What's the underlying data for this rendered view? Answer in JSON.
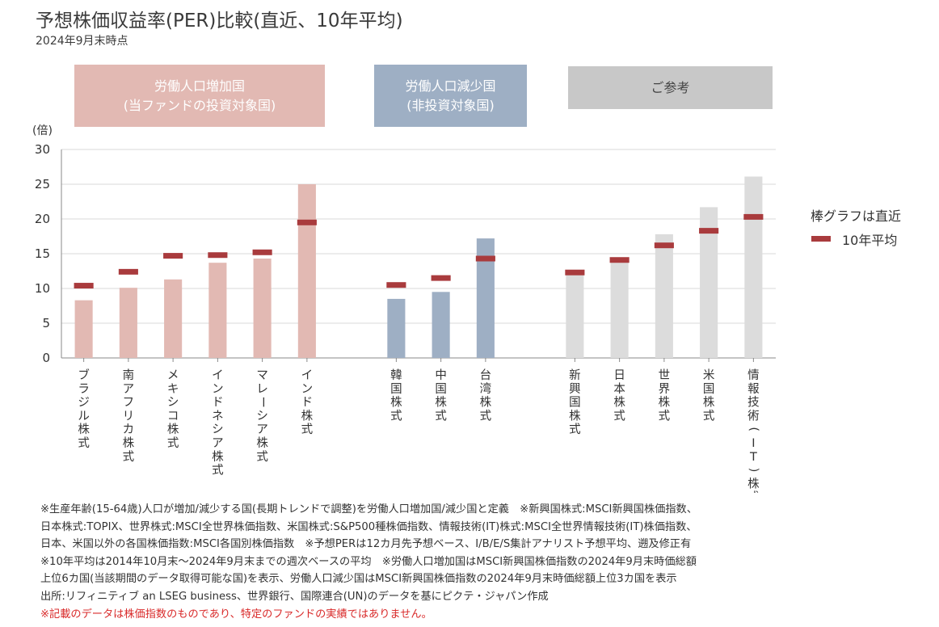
{
  "title": "予想株価収益率(PER)比較(直近、10年平均)",
  "subtitle": "2024年9月末時点",
  "groups": [
    {
      "label_line1": "労働人口増加国",
      "label_line2": "(当ファンドの投資対象国)",
      "color": "#e2b9b3"
    },
    {
      "label_line1": "労働人口減少国",
      "label_line2": "(非投資対象国)",
      "color": "#9eafc4"
    },
    {
      "label_line1": "ご参考",
      "label_line2": "",
      "color": "#c8c8c8",
      "text_color": "#555555"
    }
  ],
  "legend": {
    "bar_label": "棒グラフは直近",
    "marker_label": "10年平均",
    "marker_color": "#a93b3d"
  },
  "chart_data": {
    "type": "bar",
    "ylabel": "(倍)",
    "ylim": [
      0,
      30
    ],
    "yticks": [
      0,
      5,
      10,
      15,
      20,
      25,
      30
    ],
    "grid": true,
    "categories": [
      "ブラジル株式",
      "南アフリカ株式",
      "メキシコ株式",
      "インドネシア株式",
      "マレーシア株式",
      "インド株式",
      "韓国株式",
      "中国株式",
      "台湾株式",
      "新興国株式",
      "日本株式",
      "世界株式",
      "米国株式",
      "情報技術(IT)株式"
    ],
    "category_group": [
      0,
      0,
      0,
      0,
      0,
      0,
      1,
      1,
      1,
      2,
      2,
      2,
      2,
      2
    ],
    "series": [
      {
        "name": "棒グラフは直近",
        "values": [
          8.3,
          10.1,
          11.3,
          13.7,
          14.3,
          25.0,
          8.5,
          9.5,
          17.2,
          12.2,
          13.8,
          17.8,
          21.7,
          26.1
        ]
      },
      {
        "name": "10年平均",
        "values": [
          10.4,
          12.4,
          14.7,
          14.8,
          15.2,
          19.5,
          10.5,
          11.5,
          14.3,
          12.3,
          14.1,
          16.2,
          18.3,
          20.3
        ]
      }
    ],
    "bar_colors": {
      "0": "#e2b9b3",
      "1": "#9eafc4",
      "2": "#dcdcdc"
    }
  },
  "notes": [
    "※生産年齢(15-64歳)人口が増加/減少する国(長期トレンドで調整)を労働人口増加国/減少国と定義　※新興国株式:MSCI新興国株価指数、",
    "日本株式:TOPIX、世界株式:MSCI全世界株価指数、米国株式:S&P500種株価指数、情報技術(IT)株式:MSCI全世界情報技術(IT)株価指数、",
    "日本、米国以外の各国株価指数:MSCI各国別株価指数　※予想PERは12カ月先予想ベース、I/B/E/S集計アナリスト予想平均、遡及修正有",
    "※10年平均は2014年10月末～2024年9月末までの週次ベースの平均　※労働人口増加国はMSCI新興国株価指数の2024年9月末時価総額",
    "上位6カ国(当該期間のデータ取得可能な国)を表示、労働人口減少国はMSCI新興国株価指数の2024年9月末時価総額上位3カ国を表示",
    "出所:リフィニティブ an LSEG business、世界銀行、国際連合(UN)のデータを基にピクテ・ジャパン作成"
  ],
  "disclaimer": "※記載のデータは株価指数のものであり、特定のファンドの実績ではありません。"
}
